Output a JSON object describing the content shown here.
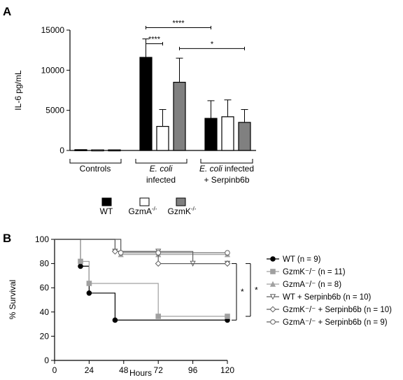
{
  "chart_data": [
    {
      "panel": "A",
      "type": "bar",
      "ylabel": "IL-6 pg/mL",
      "ylim": [
        0,
        15000
      ],
      "yticks": [
        0,
        5000,
        10000,
        15000
      ],
      "groups": [
        {
          "label_lines": [
            "Controls"
          ],
          "values": [
            100,
            80,
            80
          ],
          "errors": [
            null,
            null,
            null
          ]
        },
        {
          "label_lines": [
            "E. coli",
            "infected"
          ],
          "values": [
            11600,
            3000,
            8500
          ],
          "errors": [
            2300,
            2100,
            3000
          ]
        },
        {
          "label_lines": [
            "E. coli infected",
            "+ Serpinb6b"
          ],
          "values": [
            4000,
            4200,
            3500
          ],
          "errors": [
            2200,
            2100,
            1600
          ]
        }
      ],
      "series": [
        {
          "name": "WT",
          "color": "#000000"
        },
        {
          "name": "GzmA-/-",
          "color": "#ffffff"
        },
        {
          "name": "GzmK-/-",
          "color": "#808080"
        }
      ],
      "significance": [
        {
          "label": "****",
          "from": [
            1,
            0
          ],
          "to": [
            1,
            1
          ],
          "y": 13300
        },
        {
          "label": "****",
          "from": [
            1,
            0
          ],
          "to": [
            2,
            0
          ],
          "y": 15300
        },
        {
          "label": "*",
          "from": [
            1,
            2
          ],
          "to": [
            2,
            2
          ],
          "y": 12700
        }
      ]
    },
    {
      "panel": "B",
      "type": "line",
      "subtype": "survival",
      "xlabel": "Hours",
      "ylabel": "% Survival",
      "xlim": [
        0,
        120
      ],
      "ylim": [
        0,
        100
      ],
      "xticks": [
        0,
        24,
        48,
        72,
        96,
        120
      ],
      "yticks": [
        0,
        20,
        40,
        60,
        80,
        100
      ],
      "series": [
        {
          "name": "WT (n = 9)",
          "color": "#000000",
          "marker": "filled-circle",
          "x": [
            0,
            18,
            24,
            42,
            120
          ],
          "y": [
            100,
            77.8,
            55.6,
            33.3,
            33.3
          ]
        },
        {
          "name": "GzmK⁻/⁻ (n = 11)",
          "color": "#a0a0a0",
          "marker": "filled-square",
          "x": [
            0,
            18,
            24,
            72,
            120
          ],
          "y": [
            100,
            81.8,
            63.6,
            36.4,
            36.4
          ]
        },
        {
          "name": "GzmA⁻/⁻ (n = 8)",
          "color": "#a0a0a0",
          "marker": "filled-triangle",
          "x": [
            0,
            42,
            46,
            72,
            120
          ],
          "y": [
            100,
            100,
            87.5,
            87.5,
            87.5
          ]
        },
        {
          "name": "WT + Serpinb6b (n = 10)",
          "color": "#606060",
          "marker": "open-down-triangle",
          "x": [
            0,
            42,
            46,
            72,
            96,
            120
          ],
          "y": [
            100,
            90,
            90,
            90,
            80,
            80
          ]
        },
        {
          "name": "GzmK⁻/⁻ + Serpinb6b (n = 10)",
          "color": "#606060",
          "marker": "open-diamond",
          "x": [
            0,
            42,
            46,
            72,
            120
          ],
          "y": [
            100,
            90,
            90,
            80,
            80
          ]
        },
        {
          "name": "GzmA⁻/⁻ + Serpinb6b (n = 9)",
          "color": "#606060",
          "marker": "open-circle",
          "x": [
            0,
            42,
            46,
            72,
            120
          ],
          "y": [
            100,
            100,
            88.9,
            88.9,
            88.9
          ]
        }
      ],
      "significance": [
        {
          "label": "*",
          "y_from": 33.3,
          "y_to": 80
        },
        {
          "label": "*",
          "y_from": 36.4,
          "y_to": 80
        }
      ]
    }
  ],
  "panels": {
    "a_letter": "A",
    "b_letter": "B"
  },
  "legend_a": {
    "wt": "WT",
    "gzma_base": "GzmA",
    "gzma_sup": "-/-",
    "gzmk_base": "GzmK",
    "gzmk_sup": "-/-"
  },
  "ecoli": "E. coli",
  "infected": "infected",
  "infected_suffix": " infected",
  "serpin_line": "+ Serpinb6b"
}
